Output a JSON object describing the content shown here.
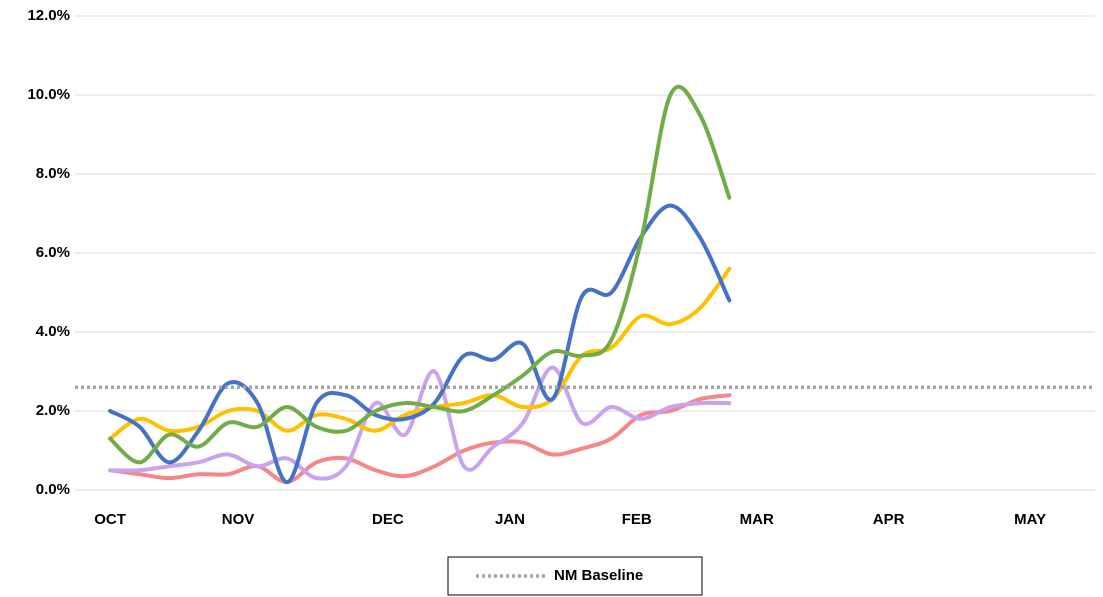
{
  "chart_data": {
    "type": "line",
    "x": [
      0,
      1,
      2,
      3,
      4,
      5,
      6,
      7,
      8,
      9,
      10,
      11,
      12,
      13,
      14,
      15,
      16,
      17,
      18,
      19,
      20,
      21
    ],
    "xlim": [
      -1.19,
      33.4
    ],
    "xticks": [
      {
        "value": 0,
        "label": "OCT"
      },
      {
        "value": 4.34,
        "label": "NOV"
      },
      {
        "value": 9.42,
        "label": "DEC"
      },
      {
        "value": 13.56,
        "label": "JAN"
      },
      {
        "value": 17.86,
        "label": "FEB"
      },
      {
        "value": 21.93,
        "label": "MAR"
      },
      {
        "value": 26.4,
        "label": "APR"
      },
      {
        "value": 31.2,
        "label": "MAY"
      }
    ],
    "ylim": [
      0,
      12
    ],
    "yticks": [
      {
        "value": 0,
        "label": "0.0%"
      },
      {
        "value": 2,
        "label": "2.0%"
      },
      {
        "value": 4,
        "label": "4.0%"
      },
      {
        "value": 6,
        "label": "6.0%"
      },
      {
        "value": 8,
        "label": "8.0%"
      },
      {
        "value": 10,
        "label": "10.0%"
      },
      {
        "value": 12,
        "label": "12.0%"
      }
    ],
    "grid": true,
    "smooth": true,
    "series": [
      {
        "color": "#f4878a",
        "values": [
          0.5,
          0.4,
          0.3,
          0.4,
          0.4,
          0.6,
          0.2,
          0.7,
          0.8,
          0.5,
          0.35,
          0.6,
          1.0,
          1.2,
          1.2,
          0.9,
          1.05,
          1.3,
          1.9,
          2.0,
          2.3,
          2.4
        ]
      },
      {
        "color": "#c9a3f0",
        "values": [
          0.5,
          0.5,
          0.6,
          0.7,
          0.9,
          0.6,
          0.8,
          0.3,
          0.6,
          2.2,
          1.4,
          3.0,
          0.6,
          1.1,
          1.7,
          3.1,
          1.7,
          2.1,
          1.8,
          2.1,
          2.2,
          2.2
        ]
      },
      {
        "color": "#ffc000",
        "values": [
          1.3,
          1.8,
          1.5,
          1.6,
          2.0,
          2.0,
          1.5,
          1.9,
          1.8,
          1.5,
          1.9,
          2.1,
          2.2,
          2.4,
          2.1,
          2.3,
          3.4,
          3.6,
          4.4,
          4.2,
          4.6,
          5.6
        ]
      },
      {
        "color": "#4472c4",
        "values": [
          2.0,
          1.6,
          0.7,
          1.5,
          2.7,
          2.2,
          0.2,
          2.2,
          2.4,
          1.9,
          1.8,
          2.2,
          3.4,
          3.3,
          3.7,
          2.3,
          4.9,
          5.0,
          6.4,
          7.2,
          6.4,
          4.8
        ]
      },
      {
        "color": "#70ad47",
        "values": [
          1.3,
          0.7,
          1.4,
          1.1,
          1.7,
          1.6,
          2.1,
          1.6,
          1.5,
          2.0,
          2.2,
          2.1,
          2.0,
          2.4,
          2.9,
          3.5,
          3.4,
          3.8,
          6.3,
          10.0,
          9.5,
          7.4
        ]
      }
    ],
    "baseline": {
      "name": "NM Baseline",
      "value": 2.6,
      "color": "#a5a5a5"
    },
    "legend": "bottom"
  }
}
